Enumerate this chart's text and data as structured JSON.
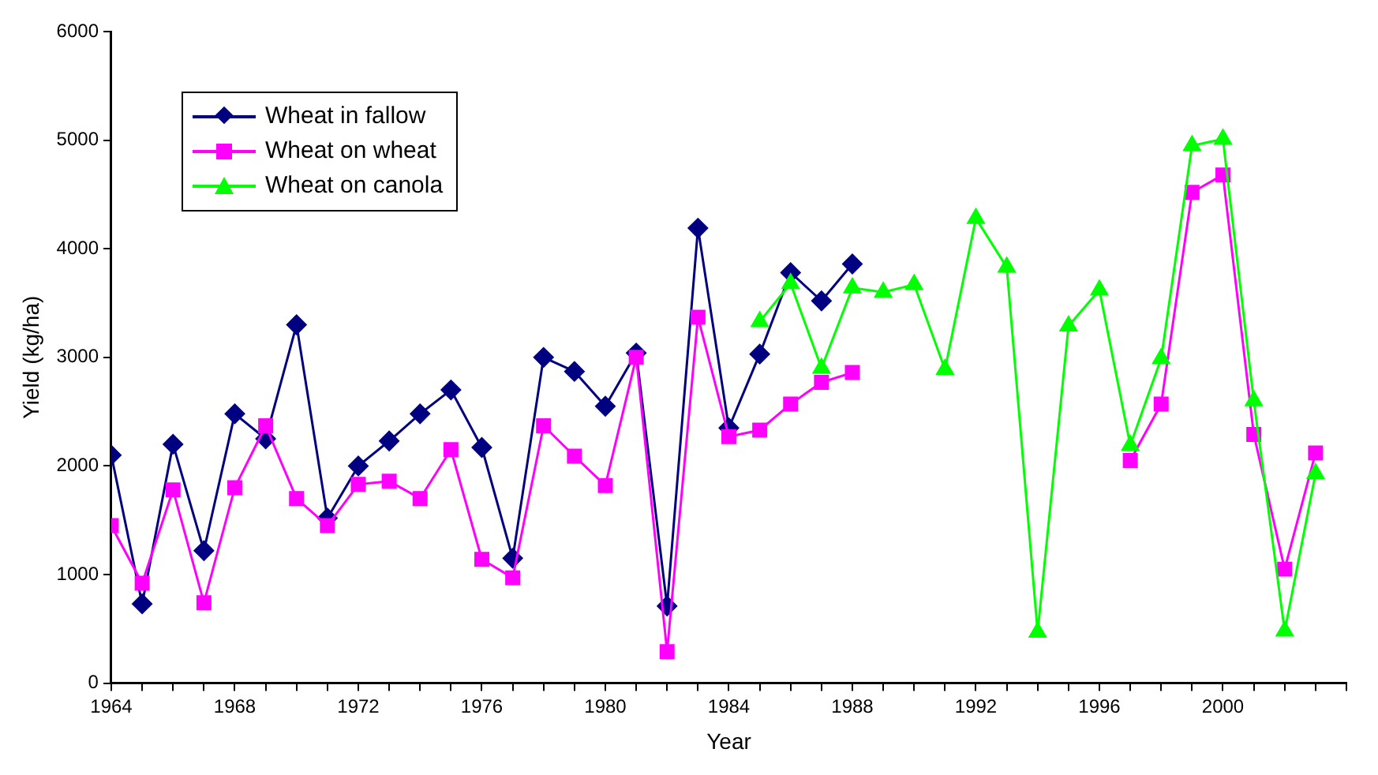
{
  "chart_data": {
    "type": "line",
    "xlabel": "Year",
    "ylabel": "Yield (kg/ha)",
    "x": [
      1964,
      1965,
      1966,
      1967,
      1968,
      1969,
      1970,
      1971,
      1972,
      1973,
      1974,
      1975,
      1976,
      1977,
      1978,
      1979,
      1980,
      1981,
      1982,
      1983,
      1984,
      1985,
      1986,
      1987,
      1988,
      1989,
      1990,
      1991,
      1992,
      1993,
      1994,
      1995,
      1996,
      1997,
      1998,
      1999,
      2000,
      2001,
      2002,
      2003
    ],
    "series": [
      {
        "name": "Wheat in fallow",
        "color": "#000080",
        "marker": "diamond",
        "values": [
          2100,
          730,
          2200,
          1220,
          2480,
          2250,
          3300,
          1520,
          2000,
          2230,
          2480,
          2700,
          2170,
          1150,
          3000,
          2870,
          2550,
          3040,
          710,
          4190,
          2350,
          3030,
          3780,
          3520,
          3860,
          null,
          null,
          null,
          null,
          null,
          null,
          null,
          null,
          null,
          null,
          null,
          null,
          null,
          null,
          null
        ]
      },
      {
        "name": "Wheat on wheat",
        "color": "#ff00ff",
        "marker": "square",
        "values": [
          1450,
          920,
          1780,
          740,
          1800,
          2370,
          1700,
          1450,
          1830,
          1860,
          1700,
          2150,
          1140,
          970,
          2370,
          2090,
          1820,
          3000,
          290,
          3370,
          2270,
          2330,
          2570,
          2770,
          2860,
          null,
          null,
          null,
          null,
          null,
          null,
          null,
          null,
          2050,
          2570,
          4520,
          4680,
          2290,
          1050,
          2120
        ]
      },
      {
        "name": "Wheat on canola",
        "color": "#00ff00",
        "marker": "triangle",
        "values": [
          null,
          null,
          null,
          null,
          null,
          null,
          null,
          null,
          null,
          null,
          null,
          null,
          null,
          null,
          null,
          null,
          null,
          null,
          null,
          null,
          null,
          3330,
          3680,
          2900,
          3640,
          3600,
          3670,
          2890,
          4280,
          3830,
          470,
          3290,
          3620,
          2190,
          2990,
          4950,
          5010,
          2600,
          480,
          1930
        ]
      }
    ],
    "xlim": [
      1964,
      2004
    ],
    "xticks": [
      1964,
      {
        "value": 1965,
        "label": null
      },
      {
        "value": 1966,
        "label": null
      },
      {
        "value": 1967,
        "label": null
      },
      1968,
      {
        "value": 1969,
        "label": null
      },
      {
        "value": 1970,
        "label": null
      },
      {
        "value": 1971,
        "label": null
      },
      1972,
      {
        "value": 1973,
        "label": null
      },
      {
        "value": 1974,
        "label": null
      },
      {
        "value": 1975,
        "label": null
      },
      1976,
      {
        "value": 1977,
        "label": null
      },
      {
        "value": 1978,
        "label": null
      },
      {
        "value": 1979,
        "label": null
      },
      1980,
      {
        "value": 1981,
        "label": null
      },
      {
        "value": 1982,
        "label": null
      },
      {
        "value": 1983,
        "label": null
      },
      1984,
      {
        "value": 1985,
        "label": null
      },
      {
        "value": 1986,
        "label": null
      },
      {
        "value": 1987,
        "label": null
      },
      1988,
      {
        "value": 1989,
        "label": null
      },
      {
        "value": 1990,
        "label": null
      },
      {
        "value": 1991,
        "label": null
      },
      1992,
      {
        "value": 1993,
        "label": null
      },
      {
        "value": 1994,
        "label": null
      },
      {
        "value": 1995,
        "label": null
      },
      1996,
      {
        "value": 1997,
        "label": null
      },
      {
        "value": 1998,
        "label": null
      },
      {
        "value": 1999,
        "label": null
      },
      2000,
      {
        "value": 2001,
        "label": null
      },
      {
        "value": 2002,
        "label": null
      },
      {
        "value": 2003,
        "label": null
      },
      {
        "value": 2004,
        "label": null
      }
    ],
    "ylim": [
      0,
      6000
    ],
    "yticks": [
      0,
      1000,
      2000,
      3000,
      4000,
      5000,
      6000
    ],
    "grid": false,
    "legend": "top left",
    "line_style": "solid"
  }
}
